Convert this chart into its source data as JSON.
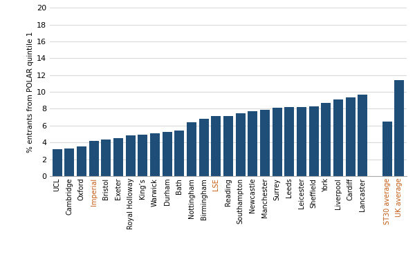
{
  "categories": [
    "UCL",
    "Cambridge",
    "Oxford",
    "Imperial",
    "Bristol",
    "Exeter",
    "Royal Holloway",
    "King’s",
    "Warwick",
    "Durham",
    "Bath",
    "Nottingham",
    "Birmingham",
    "LSE",
    "Reading",
    "Southampton",
    "Newcastle",
    "Manchester",
    "Surrey",
    "Leeds",
    "Leicester",
    "Sheffield",
    "York",
    "Liverpool",
    "Cardiff",
    "Lancaster",
    "ST30 average",
    "UK average"
  ],
  "values": [
    3.2,
    3.3,
    3.5,
    4.15,
    4.35,
    4.55,
    4.85,
    4.95,
    5.1,
    5.25,
    5.45,
    6.4,
    6.85,
    7.1,
    7.1,
    7.5,
    7.7,
    7.9,
    8.1,
    8.2,
    8.2,
    8.3,
    8.7,
    9.1,
    9.35,
    9.7,
    6.5,
    11.4
  ],
  "positions": [
    0,
    1,
    2,
    3,
    4,
    5,
    6,
    7,
    8,
    9,
    10,
    11,
    12,
    13,
    14,
    15,
    16,
    17,
    18,
    19,
    20,
    21,
    22,
    23,
    24,
    25,
    27,
    28
  ],
  "bar_color": "#1F4E79",
  "label_colors": {
    "Imperial": "#C55A11",
    "LSE": "#C55A11",
    "ST30 average": "#C55A11",
    "UK average": "#C55A11"
  },
  "ylabel": "% entrants from POLAR quintile 1",
  "ylim": [
    0,
    20
  ],
  "yticks": [
    0,
    2,
    4,
    6,
    8,
    10,
    12,
    14,
    16,
    18,
    20
  ],
  "background_color": "#FFFFFF",
  "grid_color": "#D9D9D9"
}
